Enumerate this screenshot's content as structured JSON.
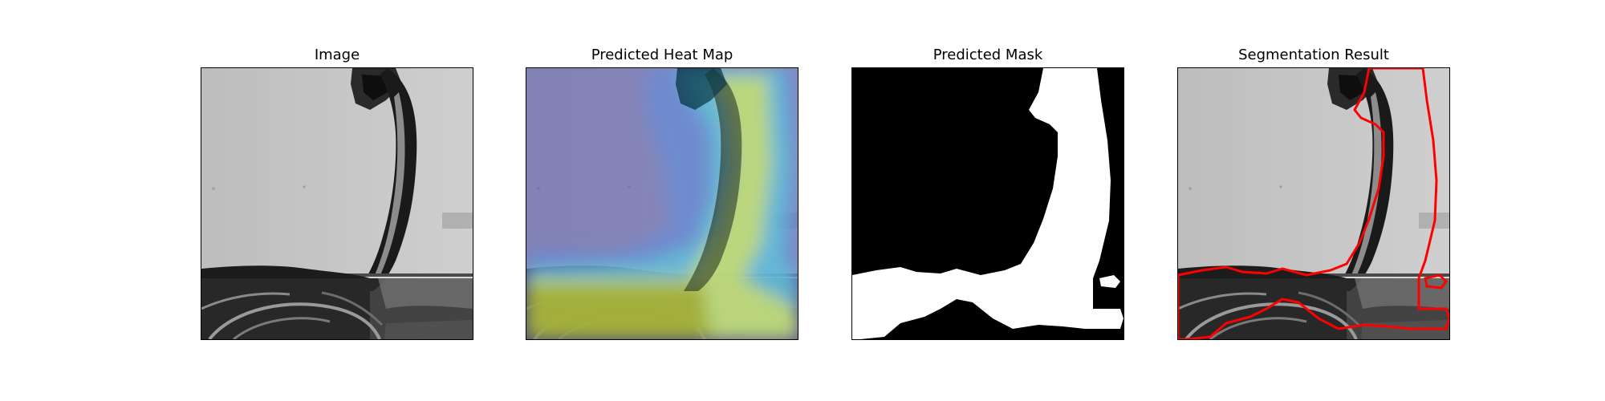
{
  "figure": {
    "panels": [
      {
        "title": "Image"
      },
      {
        "title": "Predicted Heat Map"
      },
      {
        "title": "Predicted Mask"
      },
      {
        "title": "Segmentation Result"
      }
    ]
  },
  "colors": {
    "background": "#ffffff",
    "contour": "#ff0000",
    "mask_fg": "#ffffff",
    "mask_bg": "#000000"
  }
}
